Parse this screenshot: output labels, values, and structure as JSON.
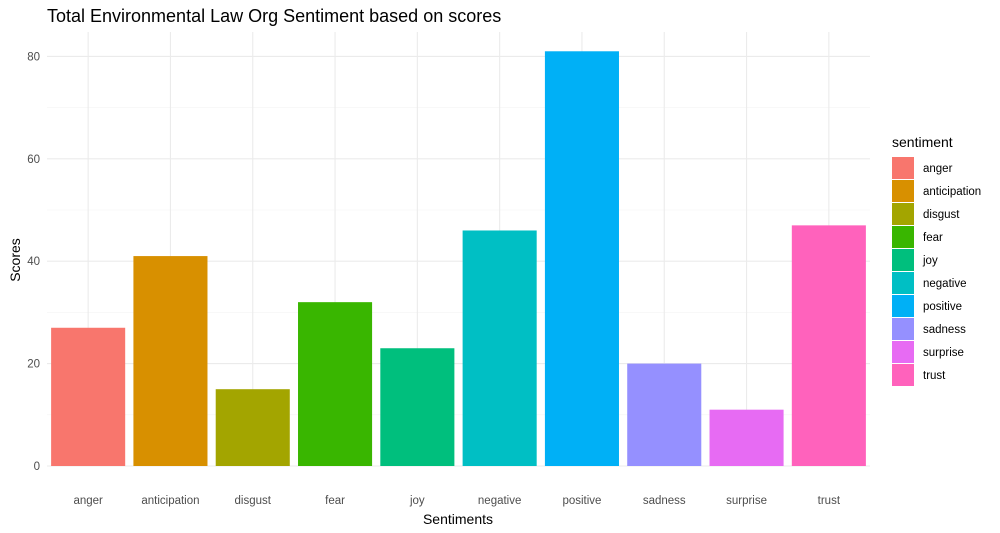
{
  "chart_data": {
    "type": "bar",
    "title": "Total Environmental Law Org Sentiment based on scores",
    "xlabel": "Sentiments",
    "ylabel": "Scores",
    "categories": [
      "anger",
      "anticipation",
      "disgust",
      "fear",
      "joy",
      "negative",
      "positive",
      "sadness",
      "surprise",
      "trust"
    ],
    "values": [
      27,
      41,
      15,
      32,
      23,
      46,
      81,
      20,
      11,
      47
    ],
    "colors": [
      "#F8766D",
      "#D89000",
      "#A3A500",
      "#39B600",
      "#00BF7D",
      "#00BFC4",
      "#00B0F6",
      "#9590FF",
      "#E76BF3",
      "#FF62BC"
    ],
    "yticks": [
      0,
      20,
      40,
      60,
      80
    ],
    "ylim": [
      0,
      85
    ],
    "grid": true,
    "legend": {
      "title": "sentiment",
      "position": "right",
      "entries": [
        "anger",
        "anticipation",
        "disgust",
        "fear",
        "joy",
        "negative",
        "positive",
        "sadness",
        "surprise",
        "trust"
      ]
    }
  }
}
